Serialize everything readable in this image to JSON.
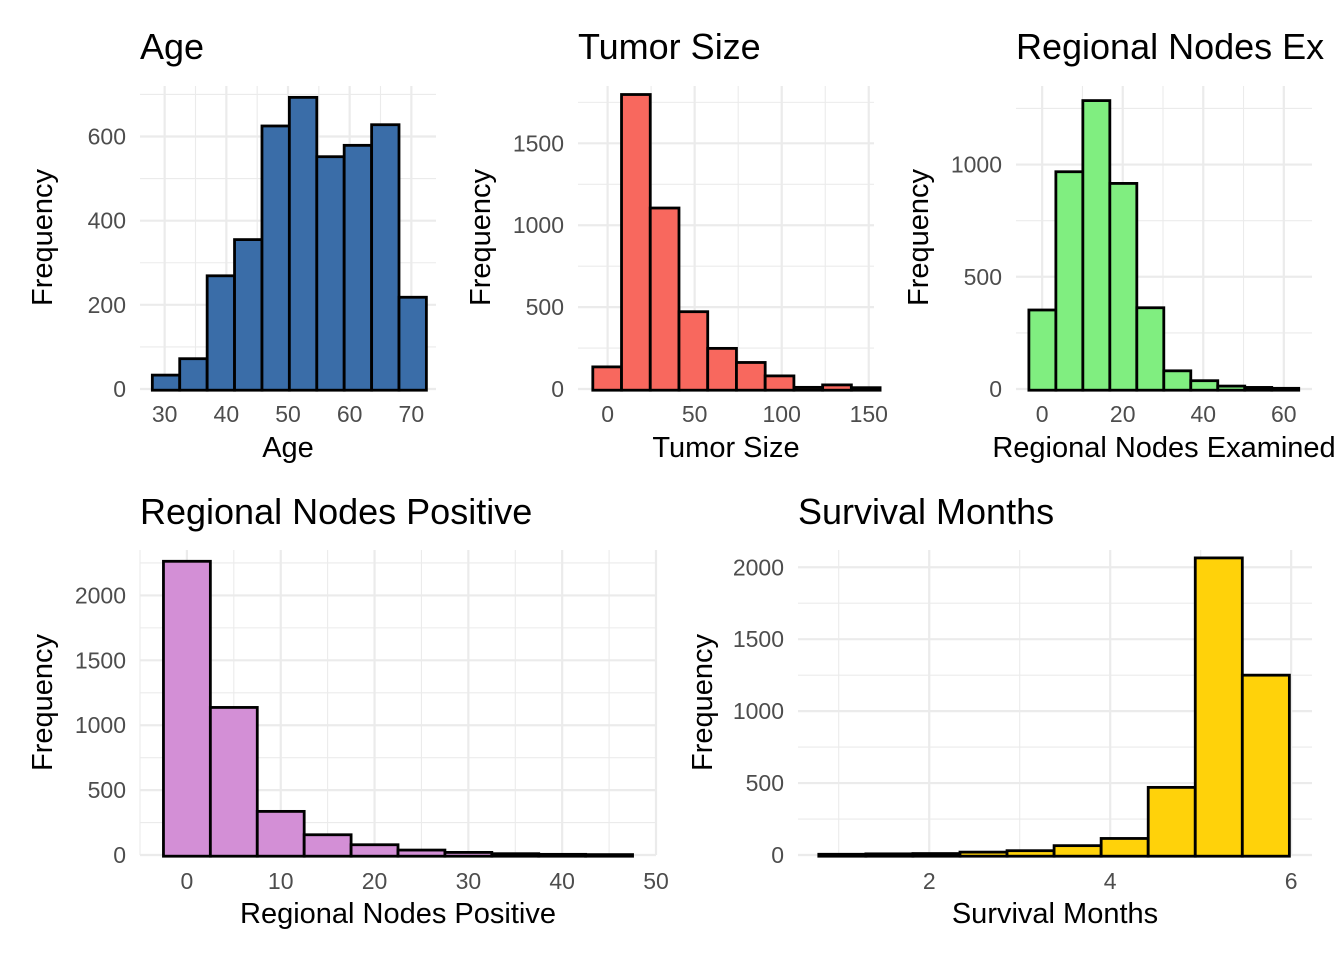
{
  "chart_data": [
    {
      "type": "bar",
      "title": "Age",
      "xlabel": "Age",
      "ylabel": "Frequency",
      "color": "#3a6da8",
      "bin_edges": [
        28,
        32.44,
        36.89,
        41.33,
        45.78,
        50.22,
        54.67,
        59.11,
        63.56,
        68,
        72.44
      ],
      "values": [
        33,
        72,
        269,
        355,
        625,
        693,
        552,
        579,
        628,
        218
      ],
      "xlim": [
        26,
        74
      ],
      "ylim": [
        0,
        720
      ],
      "xticks": [
        30,
        40,
        50,
        60,
        70
      ],
      "yticks": [
        0,
        200,
        400,
        600
      ]
    },
    {
      "type": "bar",
      "title": "Tumor Size",
      "xlabel": "Tumor Size",
      "ylabel": "Frequency",
      "color": "#f8685e",
      "bin_edges": [
        -8.5,
        8,
        24.5,
        41,
        57.5,
        74,
        90.5,
        107,
        123.5,
        140,
        156.5
      ],
      "values": [
        135,
        1798,
        1105,
        472,
        248,
        162,
        80,
        10,
        25,
        8
      ],
      "xlim": [
        -17,
        153
      ],
      "ylim": [
        0,
        1850
      ],
      "xticks": [
        0,
        50,
        100,
        150
      ],
      "yticks": [
        0,
        500,
        1000,
        1500
      ]
    },
    {
      "type": "bar",
      "title": "Regional Nodes Ex",
      "xlabel": "Regional Nodes Examined",
      "ylabel": "Frequency",
      "color": "#80ee80",
      "bin_edges": [
        -3.3,
        3.4,
        10.1,
        16.8,
        23.5,
        30.2,
        36.9,
        43.6,
        50.3,
        57,
        63.7
      ],
      "values": [
        352,
        968,
        1285,
        916,
        362,
        81,
        37,
        13,
        7,
        3
      ],
      "xlim": [
        -6.5,
        67
      ],
      "ylim": [
        0,
        1350
      ],
      "xticks": [
        0,
        20,
        40,
        60
      ],
      "yticks": [
        0,
        500,
        1000
      ]
    },
    {
      "type": "bar",
      "title": "Regional Nodes Positive",
      "xlabel": "Regional Nodes Positive",
      "ylabel": "Frequency",
      "color": "#d38fd6",
      "bin_edges": [
        -2.5,
        2.5,
        7.5,
        12.5,
        17.5,
        22.5,
        27.5,
        32.5,
        37.5,
        42.5,
        47.5
      ],
      "values": [
        2263,
        1137,
        336,
        156,
        79,
        38,
        20,
        10,
        5,
        3
      ],
      "xlim": [
        -5,
        50
      ],
      "ylim": [
        0,
        2350
      ],
      "xticks": [
        0,
        10,
        20,
        30,
        40,
        50
      ],
      "yticks": [
        0,
        500,
        1000,
        1500,
        2000
      ]
    },
    {
      "type": "bar",
      "title": "Survival Months",
      "xlabel": "Survival Months",
      "ylabel": "Frequency",
      "color": "#ffd20a",
      "bin_edges": [
        0.78,
        1.3,
        1.82,
        2.34,
        2.86,
        3.38,
        3.9,
        4.42,
        4.94,
        5.46,
        5.98
      ],
      "values": [
        5,
        8,
        10,
        20,
        30,
        65,
        115,
        470,
        2065,
        1250
      ],
      "xlim": [
        0.55,
        6.23
      ],
      "ylim": [
        0,
        2120
      ],
      "xticks": [
        2,
        4,
        6
      ],
      "yticks": [
        0,
        500,
        1000,
        1500,
        2000
      ]
    }
  ]
}
